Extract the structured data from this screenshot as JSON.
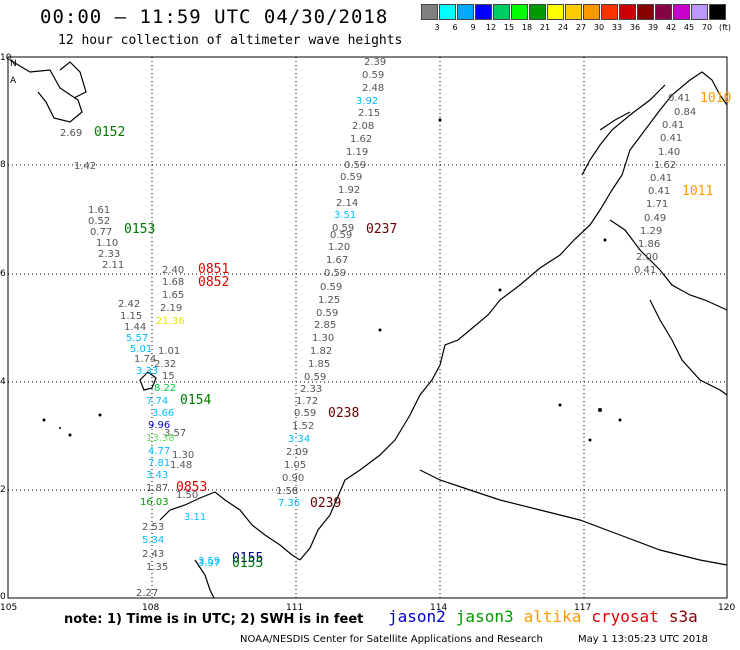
{
  "title": "00:00 – 11:59 UTC 04/30/2018",
  "subtitle": "12 hour collection of altimeter wave heights",
  "legend": {
    "colors": [
      "#808080",
      "#00ffff",
      "#00aaff",
      "#0000ff",
      "#00cc66",
      "#00ff00",
      "#009900",
      "#ffff00",
      "#ffcc00",
      "#ff9900",
      "#ff3300",
      "#cc0000",
      "#880000",
      "#880044",
      "#cc00cc",
      "#bb99ff",
      "#000000"
    ],
    "labels": [
      "3",
      "6",
      "9",
      "12",
      "15",
      "18",
      "21",
      "24",
      "27",
      "30",
      "33",
      "36",
      "39",
      "42",
      "45",
      "70",
      "(ft)"
    ]
  },
  "axes": {
    "x_labels": [
      "105",
      "108",
      "111",
      "114",
      "117",
      "120"
    ],
    "y_labels": [
      "10",
      "8",
      "6",
      "4",
      "2",
      "0"
    ]
  },
  "map_labels": {
    "north_corner": "N",
    "north_corner_south": "A"
  },
  "track_values": [
    {
      "t": "2.39",
      "c": "#555"
    },
    {
      "t": "0.59",
      "c": "#555"
    },
    {
      "t": "2.48",
      "c": "#555"
    },
    {
      "t": "3.92",
      "c": "#00bfff"
    },
    {
      "t": "2.15",
      "c": "#555"
    },
    {
      "t": "2.08",
      "c": "#555"
    },
    {
      "t": "1.62",
      "c": "#555"
    },
    {
      "t": "1.19",
      "c": "#555"
    },
    {
      "t": "0.59",
      "c": "#555"
    },
    {
      "t": "0.59",
      "c": "#555"
    },
    {
      "t": "1.92",
      "c": "#555"
    },
    {
      "t": "2.14",
      "c": "#555"
    },
    {
      "t": "3.51",
      "c": "#00bfff"
    },
    {
      "t": "0.59",
      "c": "#555"
    },
    {
      "t": "0.59",
      "c": "#555"
    },
    {
      "t": "1.20",
      "c": "#555"
    },
    {
      "t": "1.67",
      "c": "#555"
    },
    {
      "t": "0.59",
      "c": "#555"
    },
    {
      "t": "0.59",
      "c": "#555"
    },
    {
      "t": "1.25",
      "c": "#555"
    },
    {
      "t": "0.59",
      "c": "#555"
    },
    {
      "t": "2.85",
      "c": "#555"
    },
    {
      "t": "1.30",
      "c": "#555"
    },
    {
      "t": "1.82",
      "c": "#555"
    },
    {
      "t": "1.85",
      "c": "#555"
    },
    {
      "t": "0.59",
      "c": "#555"
    },
    {
      "t": "2.33",
      "c": "#555"
    },
    {
      "t": "1.72",
      "c": "#555"
    },
    {
      "t": "0.59",
      "c": "#555"
    },
    {
      "t": "1.52",
      "c": "#555"
    },
    {
      "t": "3.34",
      "c": "#00bfff"
    },
    {
      "t": "2.09",
      "c": "#555"
    },
    {
      "t": "1.05",
      "c": "#555"
    },
    {
      "t": "0.90",
      "c": "#555"
    },
    {
      "t": "1.58",
      "c": "#555"
    },
    {
      "t": "7.36",
      "c": "#00bfff"
    },
    {
      "t": "2.69",
      "c": "#555"
    },
    {
      "t": "1.42",
      "c": "#555"
    },
    {
      "t": "1.61",
      "c": "#555"
    },
    {
      "t": "0.52",
      "c": "#555"
    },
    {
      "t": "0.77",
      "c": "#555"
    },
    {
      "t": "1.10",
      "c": "#555"
    },
    {
      "t": "2.33",
      "c": "#555"
    },
    {
      "t": "2.11",
      "c": "#555"
    },
    {
      "t": "2.40",
      "c": "#555"
    },
    {
      "t": "1.68",
      "c": "#555"
    },
    {
      "t": "1.65",
      "c": "#555"
    },
    {
      "t": "2.19",
      "c": "#555"
    },
    {
      "t": "21.36",
      "c": "#e6e600"
    },
    {
      "t": "2.42",
      "c": "#555"
    },
    {
      "t": "1.15",
      "c": "#555"
    },
    {
      "t": "1.44",
      "c": "#555"
    },
    {
      "t": "5.57",
      "c": "#00bfff"
    },
    {
      "t": "5.01",
      "c": "#00bfff"
    },
    {
      "t": "1.01",
      "c": "#555"
    },
    {
      "t": "1.74",
      "c": "#555"
    },
    {
      "t": "2.32",
      "c": "#555"
    },
    {
      "t": "3.33",
      "c": "#00bfff"
    },
    {
      "t": "15",
      "c": "#555"
    },
    {
      "t": "8.22",
      "c": "#00cc44"
    },
    {
      "t": "7.74",
      "c": "#00bfff"
    },
    {
      "t": "3.66",
      "c": "#00bfff"
    },
    {
      "t": "9.96",
      "c": "#0000cc"
    },
    {
      "t": "3.57",
      "c": "#555"
    },
    {
      "t": "13.38",
      "c": "#66dd66"
    },
    {
      "t": "4.77",
      "c": "#00bfff"
    },
    {
      "t": "1.30",
      "c": "#555"
    },
    {
      "t": "7.81",
      "c": "#00bfff"
    },
    {
      "t": "1.48",
      "c": "#555"
    },
    {
      "t": "3.43",
      "c": "#00bfff"
    },
    {
      "t": "1.87",
      "c": "#555"
    },
    {
      "t": "1.50",
      "c": "#555"
    },
    {
      "t": "16.03",
      "c": "#009900"
    },
    {
      "t": "3.11",
      "c": "#00bfff"
    },
    {
      "t": "2.53",
      "c": "#555"
    },
    {
      "t": "5.34",
      "c": "#00bfff"
    },
    {
      "t": "2.43",
      "c": "#555"
    },
    {
      "t": "1.35",
      "c": "#555"
    },
    {
      "t": "3.59",
      "c": "#00bfff"
    },
    {
      "t": "3.97",
      "c": "#00bfff"
    },
    {
      "t": "2.27",
      "c": "#555"
    },
    {
      "t": "0.41",
      "c": "#555"
    },
    {
      "t": "0.84",
      "c": "#555"
    },
    {
      "t": "0.41",
      "c": "#555"
    },
    {
      "t": "0.41",
      "c": "#555"
    },
    {
      "t": "1.40",
      "c": "#555"
    },
    {
      "t": "1.62",
      "c": "#555"
    },
    {
      "t": "0.41",
      "c": "#555"
    },
    {
      "t": "0.41",
      "c": "#555"
    },
    {
      "t": "1.71",
      "c": "#555"
    },
    {
      "t": "0.49",
      "c": "#555"
    },
    {
      "t": "1.29",
      "c": "#555"
    },
    {
      "t": "1.86",
      "c": "#555"
    },
    {
      "t": "2.00",
      "c": "#555"
    },
    {
      "t": "0.41",
      "c": "#555"
    }
  ],
  "pass_ids": [
    {
      "t": "0152",
      "c": "#007700"
    },
    {
      "t": "0153",
      "c": "#007700"
    },
    {
      "t": "0154",
      "c": "#007700"
    },
    {
      "t": "0155",
      "c": "#00007a"
    },
    {
      "t": "0155",
      "c": "#007700"
    },
    {
      "t": "0851",
      "c": "#dd0000"
    },
    {
      "t": "0852",
      "c": "#dd0000"
    },
    {
      "t": "0853",
      "c": "#dd0000"
    },
    {
      "t": "0237",
      "c": "#660000"
    },
    {
      "t": "0238",
      "c": "#660000"
    },
    {
      "t": "0239",
      "c": "#660000"
    },
    {
      "t": "1010",
      "c": "#ff9900"
    },
    {
      "t": "1011",
      "c": "#ff9900"
    }
  ],
  "note": "note:  1) Time is in UTC;  2) SWH is in feet",
  "satellites": [
    {
      "name": "jason2",
      "color": "#0000cc"
    },
    {
      "name": "jason3",
      "color": "#009900"
    },
    {
      "name": "altika",
      "color": "#ff9900"
    },
    {
      "name": "cryosat",
      "color": "#dd0000"
    },
    {
      "name": "s3a",
      "color": "#880000"
    }
  ],
  "credit": "NOAA/NESDIS Center for Satellite Applications and Research",
  "timestamp": "May  1 13:05:23 UTC 2018"
}
